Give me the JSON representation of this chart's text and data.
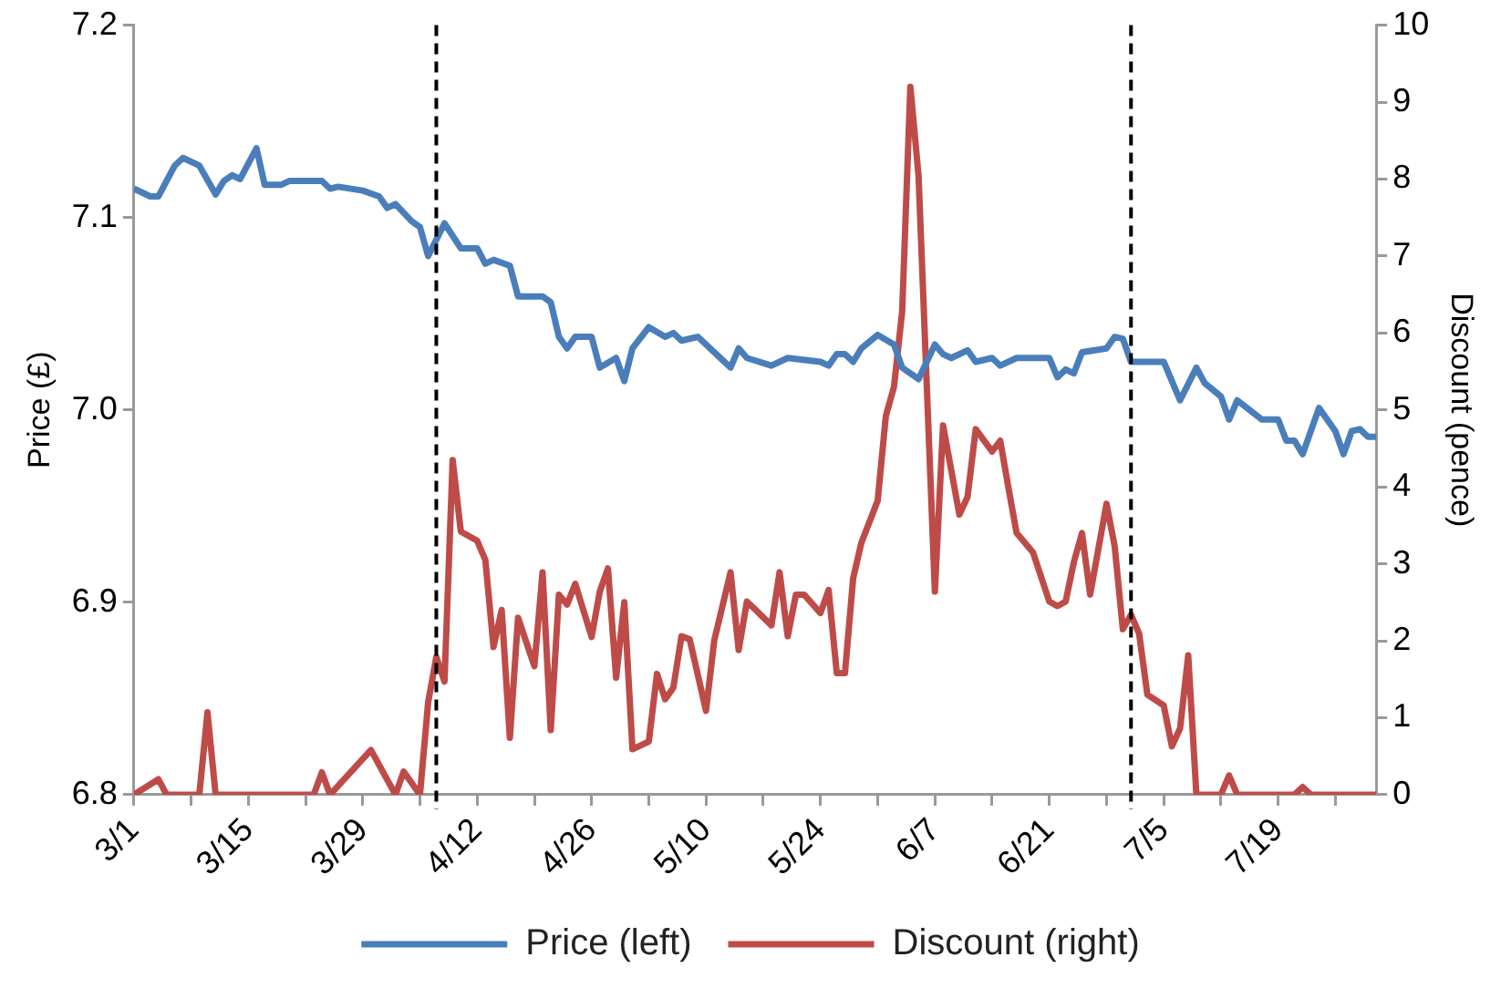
{
  "chart_data": {
    "type": "line",
    "xlabel": null,
    "ylabel": "Price (£)",
    "y2label": "Discount (pence)",
    "xlim": [
      "--03-01",
      "--07-31"
    ],
    "xticks": [
      {
        "value": "--03-01",
        "label": "3/1"
      },
      {
        "value": "--03-08",
        "label": null
      },
      {
        "value": "--03-15",
        "label": "3/15"
      },
      {
        "value": "--03-22",
        "label": null
      },
      {
        "value": "--03-29",
        "label": "3/29"
      },
      {
        "value": "--04-05",
        "label": null
      },
      {
        "value": "--04-12",
        "label": "4/12"
      },
      {
        "value": "--04-19",
        "label": null
      },
      {
        "value": "--04-26",
        "label": "4/26"
      },
      {
        "value": "--05-03",
        "label": null
      },
      {
        "value": "--05-10",
        "label": "5/10"
      },
      {
        "value": "--05-17",
        "label": null
      },
      {
        "value": "--05-24",
        "label": "5/24"
      },
      {
        "value": "--05-31",
        "label": null
      },
      {
        "value": "--06-07",
        "label": "6/7"
      },
      {
        "value": "--06-14",
        "label": null
      },
      {
        "value": "--06-21",
        "label": "6/21"
      },
      {
        "value": "--06-28",
        "label": null
      },
      {
        "value": "--07-05",
        "label": "7/5"
      },
      {
        "value": "--07-12",
        "label": null
      },
      {
        "value": "--07-19",
        "label": "7/19"
      },
      {
        "value": "--07-26",
        "label": null
      }
    ],
    "ylim": [
      6.8,
      7.2
    ],
    "yticks": [
      6.8,
      6.9,
      {
        "value": 7,
        "label": "7.0"
      },
      7.1,
      7.2
    ],
    "y2lim": [
      0,
      10
    ],
    "y2ticks": [
      0,
      1,
      2,
      3,
      4,
      5,
      6,
      7,
      8,
      9,
      10
    ],
    "grid": false,
    "legend": "bottom",
    "marker": "none",
    "line_style": "solid",
    "ref_lines": [
      {
        "axis": "x",
        "value": "--04-07",
        "color": "#000000",
        "line_style": "dashed"
      },
      {
        "axis": "x",
        "value": "--07-01",
        "color": "#000000",
        "line_style": "dashed"
      }
    ],
    "series": [
      {
        "name": "Price (left)",
        "color": "#4a7ebb",
        "x": [
          "--03-01",
          "--03-03",
          "--03-04",
          "--03-06",
          "--03-07",
          "--03-09",
          "--03-11",
          "--03-12",
          "--03-13",
          "--03-14",
          "--03-16",
          "--03-17",
          "--03-19",
          "--03-20",
          "--03-24",
          "--03-25",
          "--03-26",
          "--03-29",
          "--03-31",
          "--04-01",
          "--04-02",
          "--04-04",
          "--04-05",
          "--04-06",
          "--04-08",
          "--04-10",
          "--04-12",
          "--04-13",
          "--04-14",
          "--04-16",
          "--04-17",
          "--04-20",
          "--04-21",
          "--04-22",
          "--04-23",
          "--04-24",
          "--04-26",
          "--04-27",
          "--04-29",
          "--04-30",
          "--05-01",
          "--05-03",
          "--05-05",
          "--05-06",
          "--05-07",
          "--05-09",
          "--05-12",
          "--05-13",
          "--05-14",
          "--05-15",
          "--05-18",
          "--05-20",
          "--05-24",
          "--05-25",
          "--05-26",
          "--05-27",
          "--05-28",
          "--05-29",
          "--05-31",
          "--06-02",
          "--06-03",
          "--06-05",
          "--06-07",
          "--06-08",
          "--06-09",
          "--06-11",
          "--06-12",
          "--06-14",
          "--06-15",
          "--06-17",
          "--06-21",
          "--06-22",
          "--06-23",
          "--06-24",
          "--06-25",
          "--06-28",
          "--06-29",
          "--06-30",
          "--07-01",
          "--07-05",
          "--07-07",
          "--07-09",
          "--07-10",
          "--07-12",
          "--07-13",
          "--07-14",
          "--07-17",
          "--07-19",
          "--07-20",
          "--07-21",
          "--07-22",
          "--07-24",
          "--07-26",
          "--07-27",
          "--07-28",
          "--07-29",
          "--07-30",
          "--07-31"
        ],
        "values": [
          7.115,
          7.111,
          7.111,
          7.127,
          7.131,
          7.127,
          7.112,
          7.119,
          7.122,
          7.12,
          7.136,
          7.117,
          7.117,
          7.119,
          7.119,
          7.115,
          7.116,
          7.114,
          7.111,
          7.105,
          7.107,
          7.098,
          7.095,
          7.08,
          7.097,
          7.084,
          7.084,
          7.076,
          7.078,
          7.075,
          7.059,
          7.059,
          7.056,
          7.038,
          7.032,
          7.038,
          7.038,
          7.022,
          7.027,
          7.015,
          7.032,
          7.043,
          7.038,
          7.04,
          7.036,
          7.038,
          7.026,
          7.022,
          7.032,
          7.027,
          7.023,
          7.027,
          7.025,
          7.023,
          7.029,
          7.029,
          7.025,
          7.032,
          7.039,
          7.034,
          7.022,
          7.016,
          7.034,
          7.029,
          7.027,
          7.031,
          7.025,
          7.027,
          7.023,
          7.027,
          7.027,
          7.017,
          7.021,
          7.019,
          7.03,
          7.032,
          7.038,
          7.037,
          7.025,
          7.025,
          7.005,
          7.022,
          7.014,
          7.007,
          6.995,
          7.005,
          6.995,
          6.995,
          6.984,
          6.984,
          6.977,
          7.001,
          6.989,
          6.977,
          6.989,
          6.99,
          6.986,
          6.986
        ]
      },
      {
        "name": "Discount (right)",
        "color": "#be4b48",
        "axis": "y2",
        "x": [
          "--03-01",
          "--03-04",
          "--03-05",
          "--03-09",
          "--03-10",
          "--03-11",
          "--03-23",
          "--03-24",
          "--03-25",
          "--03-30",
          "--04-02",
          "--04-03",
          "--04-05",
          "--04-06",
          "--04-07",
          "--04-08",
          "--04-09",
          "--04-10",
          "--04-12",
          "--04-13",
          "--04-14",
          "--04-15",
          "--04-16",
          "--04-17",
          "--04-19",
          "--04-20",
          "--04-21",
          "--04-22",
          "--04-23",
          "--04-24",
          "--04-26",
          "--04-27",
          "--04-28",
          "--04-29",
          "--04-30",
          "--05-01",
          "--05-03",
          "--05-04",
          "--05-05",
          "--05-06",
          "--05-07",
          "--05-08",
          "--05-10",
          "--05-11",
          "--05-13",
          "--05-14",
          "--05-15",
          "--05-16",
          "--05-18",
          "--05-19",
          "--05-20",
          "--05-21",
          "--05-22",
          "--05-24",
          "--05-25",
          "--05-26",
          "--05-27",
          "--05-28",
          "--05-29",
          "--05-31",
          "--06-01",
          "--06-02",
          "--06-03",
          "--06-04",
          "--06-05",
          "--06-07",
          "--06-08",
          "--06-10",
          "--06-11",
          "--06-12",
          "--06-14",
          "--06-15",
          "--06-16",
          "--06-17",
          "--06-19",
          "--06-21",
          "--06-22",
          "--06-23",
          "--06-24",
          "--06-25",
          "--06-26",
          "--06-28",
          "--06-29",
          "--06-30",
          "--07-01",
          "--07-02",
          "--07-03",
          "--07-05",
          "--07-06",
          "--07-07",
          "--07-08",
          "--07-09",
          "--07-12",
          "--07-13",
          "--07-14",
          "--07-21",
          "--07-22",
          "--07-23",
          "--07-31"
        ],
        "values": [
          0,
          0.2,
          0,
          0,
          1.07,
          0,
          0,
          0.29,
          0,
          0.58,
          0,
          0.3,
          0,
          1.2,
          1.79,
          1.47,
          4.35,
          3.42,
          3.3,
          3.05,
          1.92,
          2.4,
          0.74,
          2.3,
          1.67,
          2.89,
          0.84,
          2.6,
          2.47,
          2.74,
          2.05,
          2.64,
          2.94,
          1.52,
          2.5,
          0.59,
          0.69,
          1.57,
          1.24,
          1.39,
          2.06,
          2.02,
          1.09,
          2.0,
          2.89,
          1.88,
          2.51,
          2.41,
          2.2,
          2.89,
          2.06,
          2.6,
          2.6,
          2.36,
          2.66,
          1.58,
          1.58,
          2.81,
          3.27,
          3.82,
          4.92,
          5.3,
          6.28,
          9.2,
          8.05,
          2.64,
          4.8,
          3.64,
          3.87,
          4.75,
          4.46,
          4.6,
          3.99,
          3.4,
          3.15,
          2.51,
          2.45,
          2.51,
          3.02,
          3.4,
          2.6,
          3.78,
          3.23,
          2.15,
          2.34,
          2.09,
          1.3,
          1.16,
          0.63,
          0.86,
          1.81,
          0,
          0,
          0.25,
          0,
          0,
          0.1,
          0,
          0
        ]
      }
    ]
  }
}
